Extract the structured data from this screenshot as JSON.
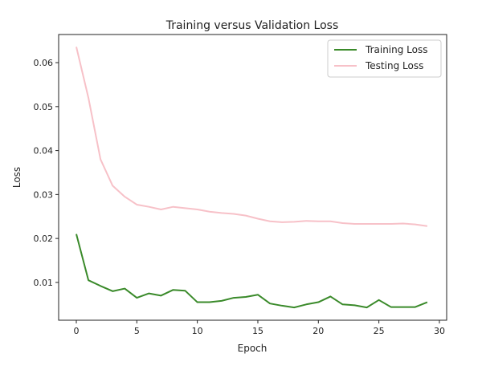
{
  "chart_data": {
    "type": "line",
    "title": "Training versus Validation Loss",
    "xlabel": "Epoch",
    "ylabel": "Loss",
    "xlim": [
      -1.46,
      30.6
    ],
    "ylim": [
      0.0014,
      0.0664
    ],
    "xticks": [
      0,
      5,
      10,
      15,
      20,
      25,
      30
    ],
    "yticks": [
      0.01,
      0.02,
      0.03,
      0.04,
      0.05,
      0.06
    ],
    "ytick_labels": [
      "0.01",
      "0.02",
      "0.03",
      "0.04",
      "0.05",
      "0.06"
    ],
    "grid": false,
    "legend_position": "top-right",
    "x": [
      0,
      1,
      2,
      3,
      4,
      5,
      6,
      7,
      8,
      9,
      10,
      11,
      12,
      13,
      14,
      15,
      16,
      17,
      18,
      19,
      20,
      21,
      22,
      23,
      24,
      25,
      26,
      27,
      28,
      29
    ],
    "series": [
      {
        "name": "Training Loss",
        "color": "#3a8a2a",
        "values": [
          0.021,
          0.0105,
          0.0092,
          0.008,
          0.0086,
          0.0065,
          0.0075,
          0.007,
          0.0083,
          0.0081,
          0.0055,
          0.0055,
          0.0058,
          0.0065,
          0.0067,
          0.0072,
          0.0052,
          0.0047,
          0.0043,
          0.005,
          0.0055,
          0.0068,
          0.005,
          0.0048,
          0.0043,
          0.006,
          0.0044,
          0.0044,
          0.0044,
          0.0055
        ]
      },
      {
        "name": "Testing Loss",
        "color": "#f7c1c8",
        "values": [
          0.0636,
          0.052,
          0.038,
          0.032,
          0.0295,
          0.0277,
          0.0272,
          0.0266,
          0.0272,
          0.0269,
          0.0266,
          0.0261,
          0.0258,
          0.0256,
          0.0252,
          0.0245,
          0.0239,
          0.0237,
          0.0238,
          0.024,
          0.0239,
          0.0239,
          0.0235,
          0.0233,
          0.0233,
          0.0233,
          0.0233,
          0.0234,
          0.0232,
          0.0228
        ]
      }
    ]
  }
}
